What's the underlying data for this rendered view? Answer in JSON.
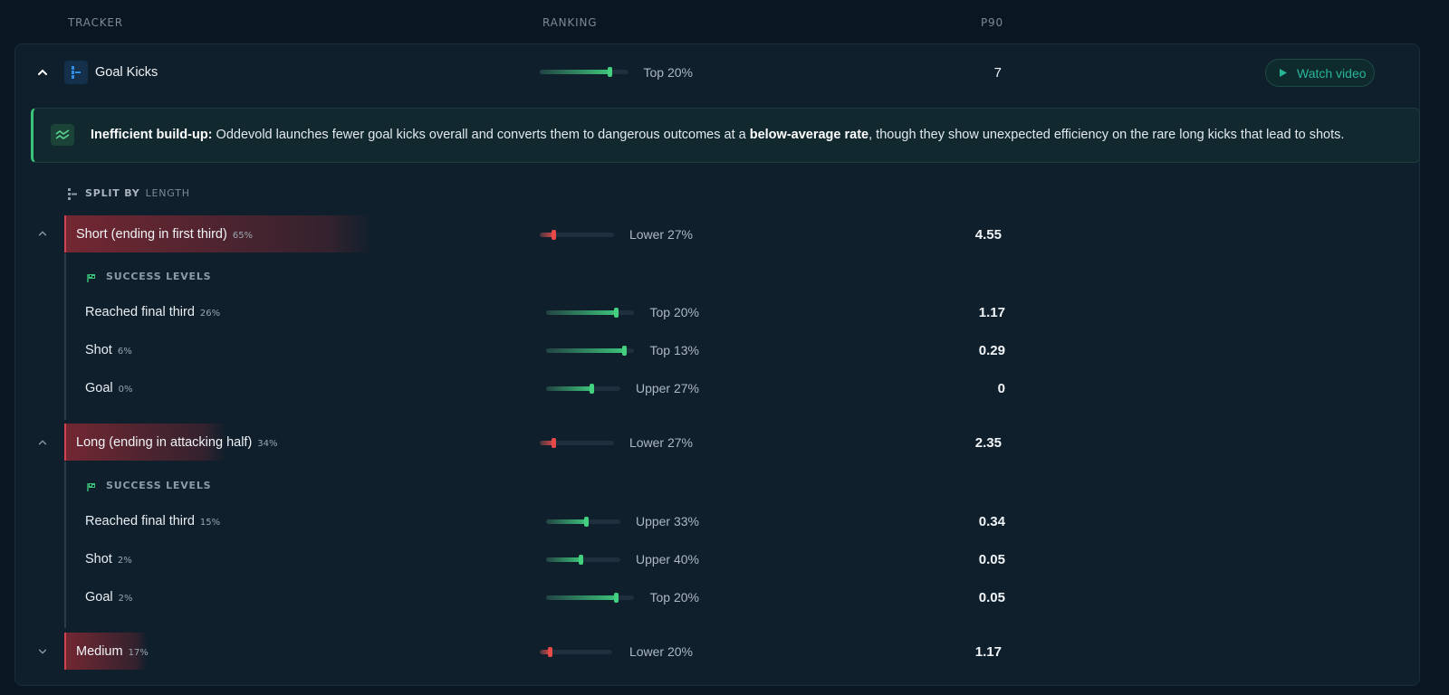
{
  "headers": {
    "tracker": "TRACKER",
    "ranking": "RANKING",
    "p90": "P90"
  },
  "main": {
    "name": "Goal Kicks",
    "ranking": "Top 20%",
    "ranking_fraction": 0.8,
    "p90": "7",
    "watch_video": "Watch video"
  },
  "insight": {
    "lead": "Inefficient build-up:",
    "text1": " Oddevold launches fewer goal kicks overall and converts them to dangerous outcomes at a ",
    "bold2": "below-average rate",
    "text2": ", though they show unexpected efficiency on the rare long kicks that lead to shots."
  },
  "split": {
    "label": "SPLIT BY",
    "value": "LENGTH"
  },
  "success_heading": "SUCCESS LEVELS",
  "groups": [
    {
      "name": "Short (ending in first third)",
      "pct": "65%",
      "ranking": "Lower 27%",
      "ranking_fraction": 0.2,
      "p90": "4.55",
      "rows": [
        {
          "name": "Reached final third",
          "pct": "26%",
          "ranking": "Top 20%",
          "ranking_fraction": 0.8,
          "p90": "1.17"
        },
        {
          "name": "Shot",
          "pct": "6%",
          "ranking": "Top 13%",
          "ranking_fraction": 0.9,
          "p90": "0.29"
        },
        {
          "name": "Goal",
          "pct": "0%",
          "ranking": "Upper 27%",
          "ranking_fraction": 0.62,
          "p90": "0"
        }
      ]
    },
    {
      "name": "Long (ending in attacking half)",
      "pct": "34%",
      "ranking": "Lower 27%",
      "ranking_fraction": 0.2,
      "p90": "2.35",
      "rows": [
        {
          "name": "Reached final third",
          "pct": "15%",
          "ranking": "Upper 33%",
          "ranking_fraction": 0.55,
          "p90": "0.34"
        },
        {
          "name": "Shot",
          "pct": "2%",
          "ranking": "Upper 40%",
          "ranking_fraction": 0.48,
          "p90": "0.05"
        },
        {
          "name": "Goal",
          "pct": "2%",
          "ranking": "Top 20%",
          "ranking_fraction": 0.8,
          "p90": "0.05"
        }
      ]
    },
    {
      "name": "Medium",
      "pct": "17%",
      "ranking": "Lower 20%",
      "ranking_fraction": 0.15,
      "p90": "1.17",
      "rows": []
    }
  ]
}
